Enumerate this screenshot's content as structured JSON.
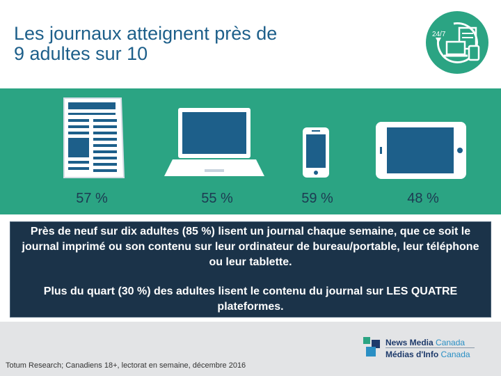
{
  "header": {
    "title_line1": "Les journaux atteignent près de",
    "title_line2": "9 adultes sur 10",
    "badge_text": "24/7"
  },
  "platforms": [
    {
      "icon": "newspaper-icon",
      "percent": "57 %"
    },
    {
      "icon": "laptop-icon",
      "percent": "55 %"
    },
    {
      "icon": "smartphone-icon",
      "percent": "59 %"
    },
    {
      "icon": "tablet-icon",
      "percent": "48 %"
    }
  ],
  "summary": {
    "paragraph1": "Près de neuf sur dix adultes (85 %) lisent un journal chaque semaine, que ce soit le journal imprimé ou son contenu sur leur ordinateur de bureau/portable, leur téléphone ou leur tablette.",
    "paragraph2": "Plus du quart (30 %) des adultes lisent le contenu du journal sur LES QUATRE plateformes."
  },
  "footer": {
    "source": "Totum Research; Canadiens 18+, lectorat en semaine, décembre 2016",
    "logo_en_bold": "News Media",
    "logo_en_light": "Canada",
    "logo_fr_bold": "Médias d'Info",
    "logo_fr_light": "Canada"
  },
  "colors": {
    "green": "#2ba483",
    "navy": "#1b3349",
    "title": "#1d5f8a"
  }
}
